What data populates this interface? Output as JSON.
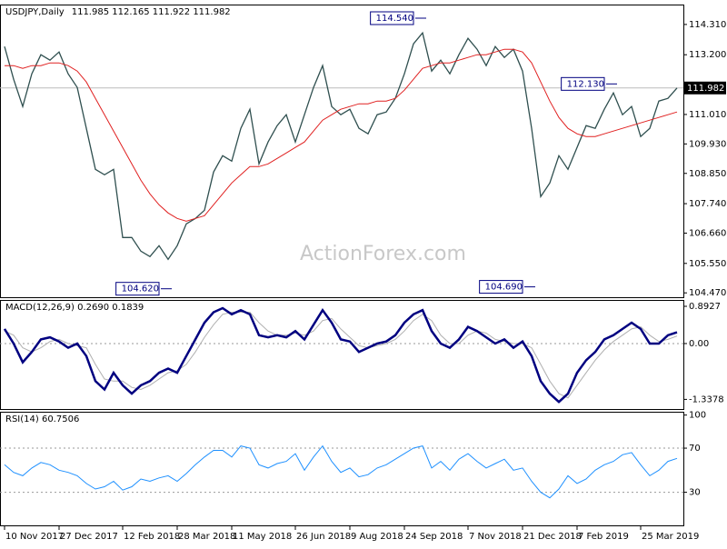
{
  "chart_data": [
    {
      "type": "line",
      "title": "USDJPY,Daily",
      "subtitle": "111.985 112.165 111.922 111.982",
      "watermark": "ActionForex.com",
      "xlim": [
        -0.5,
        74.7
      ],
      "ylim": [
        104.31,
        115.04
      ],
      "yticks": [
        {
          "value": 114.31,
          "label": "114.310"
        },
        {
          "value": 113.2,
          "label": "113.200"
        },
        {
          "value": 111.01,
          "label": "111.010"
        },
        {
          "value": 109.93,
          "label": "109.930"
        },
        {
          "value": 108.85,
          "label": "108.850"
        },
        {
          "value": 107.74,
          "label": "107.740"
        },
        {
          "value": 106.66,
          "label": "106.660"
        },
        {
          "value": 105.55,
          "label": "105.550"
        },
        {
          "value": 104.47,
          "label": "104.470"
        }
      ],
      "last_price": {
        "value": 111.982,
        "label": "111.982"
      },
      "annotations": [
        {
          "x": 46,
          "value": 114.54,
          "label": "114.540"
        },
        {
          "x": 67,
          "value": 112.13,
          "label": "112.130"
        },
        {
          "x": 18,
          "value": 104.62,
          "label": "104.620"
        },
        {
          "x": 58,
          "value": 104.69,
          "label": "104.690"
        }
      ],
      "series": [
        {
          "color": "#2f4f4f",
          "width": 1.3,
          "values": [
            113.5,
            112.3,
            111.3,
            112.5,
            113.2,
            113.0,
            113.3,
            112.5,
            112.0,
            110.5,
            109.0,
            108.8,
            109.0,
            106.5,
            106.5,
            106.0,
            105.8,
            106.2,
            105.7,
            106.2,
            107.0,
            107.2,
            107.5,
            108.9,
            109.5,
            109.3,
            110.5,
            111.2,
            109.2,
            110.0,
            110.6,
            111.0,
            110.0,
            111.0,
            112.0,
            112.8,
            111.3,
            111.0,
            111.2,
            110.5,
            110.3,
            111.0,
            111.1,
            111.6,
            112.5,
            113.6,
            114.0,
            112.6,
            113.0,
            112.5,
            113.2,
            113.8,
            113.4,
            112.8,
            113.5,
            113.1,
            113.4,
            112.6,
            110.5,
            108.0,
            108.5,
            109.5,
            109.0,
            109.8,
            110.6,
            110.5,
            111.2,
            111.8,
            111.0,
            111.3,
            110.2,
            110.5,
            111.5,
            111.6,
            111.98
          ]
        },
        {
          "color": "#e02020",
          "width": 1,
          "values": [
            112.8,
            112.8,
            112.7,
            112.8,
            112.8,
            112.9,
            112.9,
            112.8,
            112.6,
            112.2,
            111.6,
            111.0,
            110.4,
            109.8,
            109.2,
            108.6,
            108.1,
            107.7,
            107.4,
            107.2,
            107.1,
            107.2,
            107.3,
            107.7,
            108.1,
            108.5,
            108.8,
            109.1,
            109.1,
            109.2,
            109.4,
            109.6,
            109.8,
            110.0,
            110.4,
            110.8,
            111.0,
            111.2,
            111.3,
            111.4,
            111.4,
            111.5,
            111.5,
            111.6,
            111.9,
            112.3,
            112.7,
            112.8,
            112.9,
            112.9,
            113.0,
            113.1,
            113.2,
            113.2,
            113.3,
            113.4,
            113.4,
            113.3,
            112.9,
            112.2,
            111.5,
            110.9,
            110.5,
            110.3,
            110.2,
            110.2,
            110.3,
            110.4,
            110.5,
            110.6,
            110.7,
            110.8,
            110.9,
            111.0,
            111.1
          ]
        }
      ]
    },
    {
      "type": "line",
      "title": "MACD(12,26,9) 0.2690 0.1839",
      "xlim": [
        -0.5,
        74.7
      ],
      "ylim": [
        -1.569,
        1.045
      ],
      "yticks": [
        0.8927,
        {
          "value": 0,
          "label": "0.00"
        },
        -1.3378
      ],
      "levels": [
        0
      ],
      "series": [
        {
          "color": "#b0b0b0",
          "width": 1,
          "values": [
            0.3,
            0.2,
            -0.1,
            -0.2,
            -0.1,
            0.05,
            0.1,
            0.0,
            -0.05,
            -0.1,
            -0.5,
            -0.85,
            -0.9,
            -0.9,
            -1.05,
            -1.1,
            -1.0,
            -0.85,
            -0.7,
            -0.65,
            -0.5,
            -0.2,
            0.15,
            0.45,
            0.7,
            0.75,
            0.75,
            0.75,
            0.5,
            0.3,
            0.2,
            0.2,
            0.25,
            0.2,
            0.3,
            0.55,
            0.6,
            0.35,
            0.15,
            -0.05,
            -0.1,
            -0.05,
            0.0,
            0.1,
            0.3,
            0.55,
            0.7,
            0.55,
            0.2,
            0.0,
            0.0,
            0.2,
            0.3,
            0.25,
            0.1,
            0.05,
            0.0,
            0.0,
            -0.1,
            -0.5,
            -0.9,
            -1.2,
            -1.3,
            -1.0,
            -0.7,
            -0.4,
            -0.15,
            0.05,
            0.2,
            0.35,
            0.4,
            0.2,
            0.05,
            0.1,
            0.18
          ]
        },
        {
          "color": "#000080",
          "width": 2.5,
          "values": [
            0.35,
            0.0,
            -0.45,
            -0.2,
            0.1,
            0.15,
            0.05,
            -0.1,
            0.0,
            -0.3,
            -0.9,
            -1.1,
            -0.7,
            -1.0,
            -1.2,
            -1.0,
            -0.9,
            -0.7,
            -0.6,
            -0.7,
            -0.3,
            0.1,
            0.5,
            0.75,
            0.85,
            0.7,
            0.8,
            0.7,
            0.2,
            0.15,
            0.2,
            0.15,
            0.3,
            0.1,
            0.45,
            0.8,
            0.5,
            0.1,
            0.05,
            -0.2,
            -0.1,
            0.0,
            0.05,
            0.2,
            0.5,
            0.7,
            0.8,
            0.3,
            0.0,
            -0.1,
            0.1,
            0.4,
            0.3,
            0.15,
            0.0,
            0.1,
            -0.1,
            0.05,
            -0.3,
            -0.9,
            -1.2,
            -1.4,
            -1.2,
            -0.7,
            -0.4,
            -0.2,
            0.1,
            0.2,
            0.35,
            0.5,
            0.35,
            0.0,
            0.0,
            0.2,
            0.27
          ]
        }
      ]
    },
    {
      "type": "line",
      "title": "RSI(14) 60.7506",
      "xlim": [
        -0.5,
        74.7
      ],
      "ylim": [
        0,
        103
      ],
      "yticks": [
        100,
        70,
        30
      ],
      "levels": [
        70,
        30
      ],
      "xticks": [
        {
          "value": 0,
          "label": "10 Nov 2017"
        },
        {
          "value": 6,
          "label": "27 Dec 2017"
        },
        {
          "value": 13,
          "label": "12 Feb 2018"
        },
        {
          "value": 19,
          "label": "28 Mar 2018"
        },
        {
          "value": 25,
          "label": "11 May 2018"
        },
        {
          "value": 32,
          "label": "26 Jun 2018"
        },
        {
          "value": 38,
          "label": "9 Aug 2018"
        },
        {
          "value": 44,
          "label": "24 Sep 2018"
        },
        {
          "value": 51,
          "label": "7 Nov 2018"
        },
        {
          "value": 57,
          "label": "21 Dec 2018"
        },
        {
          "value": 63,
          "label": "7 Feb 2019"
        },
        {
          "value": 70,
          "label": "25 Mar 2019"
        }
      ],
      "series": [
        {
          "color": "#1e90ff",
          "width": 1,
          "values": [
            55,
            48,
            45,
            52,
            57,
            55,
            50,
            48,
            45,
            38,
            33,
            35,
            40,
            32,
            35,
            42,
            40,
            43,
            45,
            40,
            47,
            55,
            62,
            68,
            68,
            62,
            72,
            70,
            55,
            52,
            56,
            58,
            65,
            50,
            62,
            72,
            58,
            48,
            52,
            44,
            46,
            52,
            55,
            60,
            65,
            70,
            72,
            52,
            58,
            50,
            60,
            65,
            58,
            52,
            56,
            60,
            50,
            52,
            40,
            30,
            25,
            33,
            45,
            38,
            42,
            50,
            55,
            58,
            64,
            66,
            55,
            45,
            50,
            58,
            60.75
          ]
        }
      ]
    }
  ]
}
